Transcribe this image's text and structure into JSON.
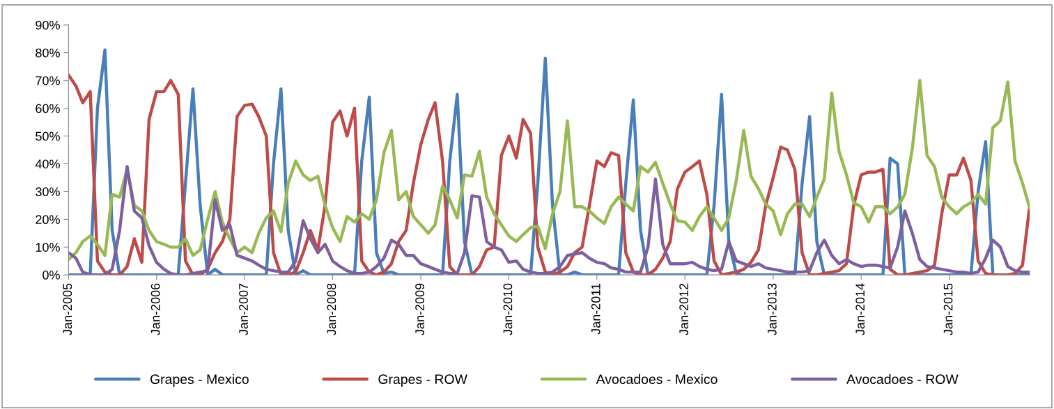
{
  "chart_data": {
    "type": "line",
    "x": [
      "2005-01",
      "2005-02",
      "2005-03",
      "2005-04",
      "2005-05",
      "2005-06",
      "2005-07",
      "2005-08",
      "2005-09",
      "2005-10",
      "2005-11",
      "2005-12",
      "2006-01",
      "2006-02",
      "2006-03",
      "2006-04",
      "2006-05",
      "2006-06",
      "2006-07",
      "2006-08",
      "2006-09",
      "2006-10",
      "2006-11",
      "2006-12",
      "2007-01",
      "2007-02",
      "2007-03",
      "2007-04",
      "2007-05",
      "2007-06",
      "2007-07",
      "2007-08",
      "2007-09",
      "2007-10",
      "2007-11",
      "2007-12",
      "2008-01",
      "2008-02",
      "2008-03",
      "2008-04",
      "2008-05",
      "2008-06",
      "2008-07",
      "2008-08",
      "2008-09",
      "2008-10",
      "2008-11",
      "2008-12",
      "2009-01",
      "2009-02",
      "2009-03",
      "2009-04",
      "2009-05",
      "2009-06",
      "2009-07",
      "2009-08",
      "2009-09",
      "2009-10",
      "2009-11",
      "2009-12",
      "2010-01",
      "2010-02",
      "2010-03",
      "2010-04",
      "2010-05",
      "2010-06",
      "2010-07",
      "2010-08",
      "2010-09",
      "2010-10",
      "2010-11",
      "2010-12",
      "2011-01",
      "2011-02",
      "2011-03",
      "2011-04",
      "2011-05",
      "2011-06",
      "2011-07",
      "2011-08",
      "2011-09",
      "2011-10",
      "2011-11",
      "2011-12",
      "2012-01",
      "2012-02",
      "2012-03",
      "2012-04",
      "2012-05",
      "2012-06",
      "2012-07",
      "2012-08",
      "2012-09",
      "2012-10",
      "2012-11",
      "2012-12",
      "2013-01",
      "2013-02",
      "2013-03",
      "2013-04",
      "2013-05",
      "2013-06",
      "2013-07",
      "2013-08",
      "2013-09",
      "2013-10",
      "2013-11",
      "2013-12",
      "2014-01",
      "2014-02",
      "2014-03",
      "2014-04",
      "2014-05",
      "2014-06",
      "2014-07",
      "2014-08",
      "2014-09",
      "2014-10",
      "2014-11",
      "2014-12",
      "2015-01",
      "2015-02",
      "2015-03",
      "2015-04",
      "2015-05",
      "2015-06",
      "2015-07",
      "2015-08",
      "2015-09",
      "2015-10",
      "2015-11",
      "2015-12"
    ],
    "xlim": [
      "2005-01",
      "2015-12"
    ],
    "xticks": [
      {
        "value": "2005-01",
        "label": "Jan-2005"
      },
      {
        "value": "2006-01",
        "label": "Jan-2006"
      },
      {
        "value": "2007-01",
        "label": "Jan-2007"
      },
      {
        "value": "2008-01",
        "label": "Jan-2008"
      },
      {
        "value": "2009-01",
        "label": "Jan-2009"
      },
      {
        "value": "2010-01",
        "label": "Jan-2010"
      },
      {
        "value": "2011-01",
        "label": "Jan-2011"
      },
      {
        "value": "2012-01",
        "label": "Jan-2012"
      },
      {
        "value": "2013-01",
        "label": "Jan-2013"
      },
      {
        "value": "2014-01",
        "label": "Jan-2014"
      },
      {
        "value": "2015-01",
        "label": "Jan-2015"
      }
    ],
    "ylim": [
      0,
      90
    ],
    "yticks": [
      {
        "value": 0,
        "label": "0%"
      },
      {
        "value": 10,
        "label": "10%"
      },
      {
        "value": 20,
        "label": "20%"
      },
      {
        "value": 30,
        "label": "30%"
      },
      {
        "value": 40,
        "label": "40%"
      },
      {
        "value": 50,
        "label": "50%"
      },
      {
        "value": 60,
        "label": "60%"
      },
      {
        "value": 70,
        "label": "70%"
      },
      {
        "value": 80,
        "label": "80%"
      },
      {
        "value": 90,
        "label": "90%"
      }
    ],
    "grid": false,
    "legend": "bottom",
    "marker": "none",
    "line_style": "solid",
    "series": [
      {
        "name": "Grapes - Mexico",
        "color": "#4a7ebb",
        "values": [
          0,
          0,
          0,
          0,
          60,
          81,
          16,
          0,
          0,
          0,
          0,
          0,
          0,
          0,
          0,
          0,
          33,
          67,
          25,
          0,
          2,
          0,
          0,
          0,
          0,
          0,
          0,
          0,
          40,
          67,
          16,
          0,
          1.5,
          0,
          0,
          0,
          0,
          0,
          0,
          0,
          41,
          64,
          8,
          0.5,
          1,
          0,
          0,
          0,
          0,
          0,
          0,
          0,
          41,
          65,
          12,
          0,
          0,
          0,
          0,
          0,
          0,
          0,
          0,
          0,
          33,
          78,
          25,
          0,
          0,
          1,
          0,
          0,
          0,
          0,
          0,
          0,
          33,
          63,
          16,
          0,
          0,
          0,
          0,
          0,
          0,
          0,
          0,
          0,
          25,
          65,
          12,
          0.5,
          0,
          0,
          0,
          0,
          0,
          0,
          0,
          0,
          33,
          57,
          12,
          0,
          0,
          0,
          0,
          0,
          0,
          0,
          0,
          0,
          42,
          40,
          0,
          0,
          0,
          0,
          0,
          0,
          0,
          0,
          0,
          0,
          30,
          48,
          0,
          0,
          0,
          0,
          0,
          0
        ]
      },
      {
        "name": "Grapes - ROW",
        "color": "#be4b48",
        "values": [
          72,
          68,
          62,
          66,
          5,
          1,
          0,
          0,
          3,
          13,
          4.5,
          56,
          66,
          66,
          70,
          65,
          5,
          0,
          0,
          2,
          8,
          12,
          20,
          57,
          61,
          61.5,
          57,
          50,
          8,
          0,
          0,
          1,
          8,
          16,
          9,
          25,
          55,
          59,
          50,
          60,
          5,
          1,
          0,
          1,
          4,
          12,
          16,
          33,
          47,
          56,
          62,
          41,
          3,
          0,
          0,
          0,
          3,
          9,
          10,
          43,
          50,
          42,
          56,
          51,
          10,
          1,
          0,
          1,
          3,
          8,
          10,
          25,
          41,
          39,
          44,
          43,
          8,
          1,
          0,
          0,
          2,
          6,
          12,
          31,
          37,
          39,
          41,
          29,
          5,
          0,
          0.5,
          1,
          2,
          4.5,
          9,
          25,
          35,
          46,
          45,
          38,
          8,
          0,
          0,
          0.5,
          1,
          1.5,
          4,
          25,
          36,
          37,
          37,
          38,
          2,
          0,
          0,
          0.5,
          1,
          1.5,
          3.5,
          22,
          36,
          36,
          42,
          34,
          5,
          0.5,
          0,
          0,
          0,
          0.5,
          3.5,
          25
        ]
      },
      {
        "name": "Avocadoes - Mexico",
        "color": "#98b954",
        "values": [
          5.5,
          8,
          12,
          14,
          11,
          7,
          29,
          28,
          38,
          25,
          23,
          16,
          12,
          11,
          10,
          10,
          13,
          7,
          9,
          20,
          30,
          19,
          13,
          8,
          10,
          8,
          15,
          20.5,
          23,
          15.5,
          33,
          41,
          36,
          34,
          35.5,
          25,
          17,
          12,
          21,
          19,
          22,
          20,
          27,
          44,
          52,
          27,
          30,
          21,
          18,
          15,
          18,
          32,
          27,
          20.5,
          36,
          35.5,
          44.5,
          28,
          22,
          18,
          14,
          12,
          14.5,
          17,
          17.5,
          9.5,
          22,
          30,
          55.5,
          24.5,
          24.5,
          23,
          20.5,
          18.5,
          24.5,
          28,
          25.5,
          23,
          39,
          37,
          40.5,
          33,
          25.5,
          19.5,
          19,
          16,
          21,
          24.5,
          20.5,
          16,
          20.5,
          34,
          52,
          35.5,
          31,
          25.5,
          23,
          14.5,
          22,
          25.5,
          25.5,
          21,
          28,
          34.5,
          65.5,
          44.5,
          36,
          26,
          24.5,
          19,
          24.5,
          24.5,
          22,
          24.5,
          29,
          45.5,
          70,
          43,
          39,
          28,
          24.5,
          22,
          24.5,
          26,
          29,
          25.5,
          53,
          55.5,
          69.5,
          41,
          33,
          24
        ]
      },
      {
        "name": "Avocadoes - ROW",
        "color": "#7d60a0",
        "values": [
          8,
          6,
          1,
          0,
          0,
          0,
          2,
          16,
          39,
          23,
          20.5,
          10.5,
          4.5,
          2,
          0.5,
          0,
          0,
          0.5,
          1,
          1.5,
          27,
          16,
          18,
          7,
          6,
          5,
          3.5,
          2,
          1.5,
          1,
          1,
          5,
          19.5,
          13,
          8,
          11,
          5,
          3,
          1.5,
          0.5,
          0.5,
          1,
          3,
          6,
          12.5,
          11,
          7,
          7,
          4,
          3,
          2,
          1,
          0.5,
          0.5,
          8,
          28.5,
          28,
          12,
          10,
          9,
          4.5,
          5,
          2,
          1,
          0.5,
          0.5,
          1,
          3,
          7,
          7.5,
          8,
          6,
          4.5,
          4,
          2.5,
          2,
          1,
          1,
          1,
          10,
          34.5,
          11,
          4,
          4,
          4,
          4.5,
          3,
          2,
          1.5,
          2,
          12,
          5,
          4,
          3,
          4,
          2.5,
          2,
          1.5,
          1,
          1,
          1,
          1.5,
          8,
          12.5,
          7,
          4,
          5.5,
          4,
          3,
          3.5,
          3.5,
          3,
          2.5,
          10,
          23,
          15,
          5.5,
          3,
          2.5,
          2,
          1.5,
          1,
          1,
          0.5,
          1,
          6,
          12.5,
          10,
          3,
          1.5,
          1,
          1
        ]
      }
    ]
  }
}
